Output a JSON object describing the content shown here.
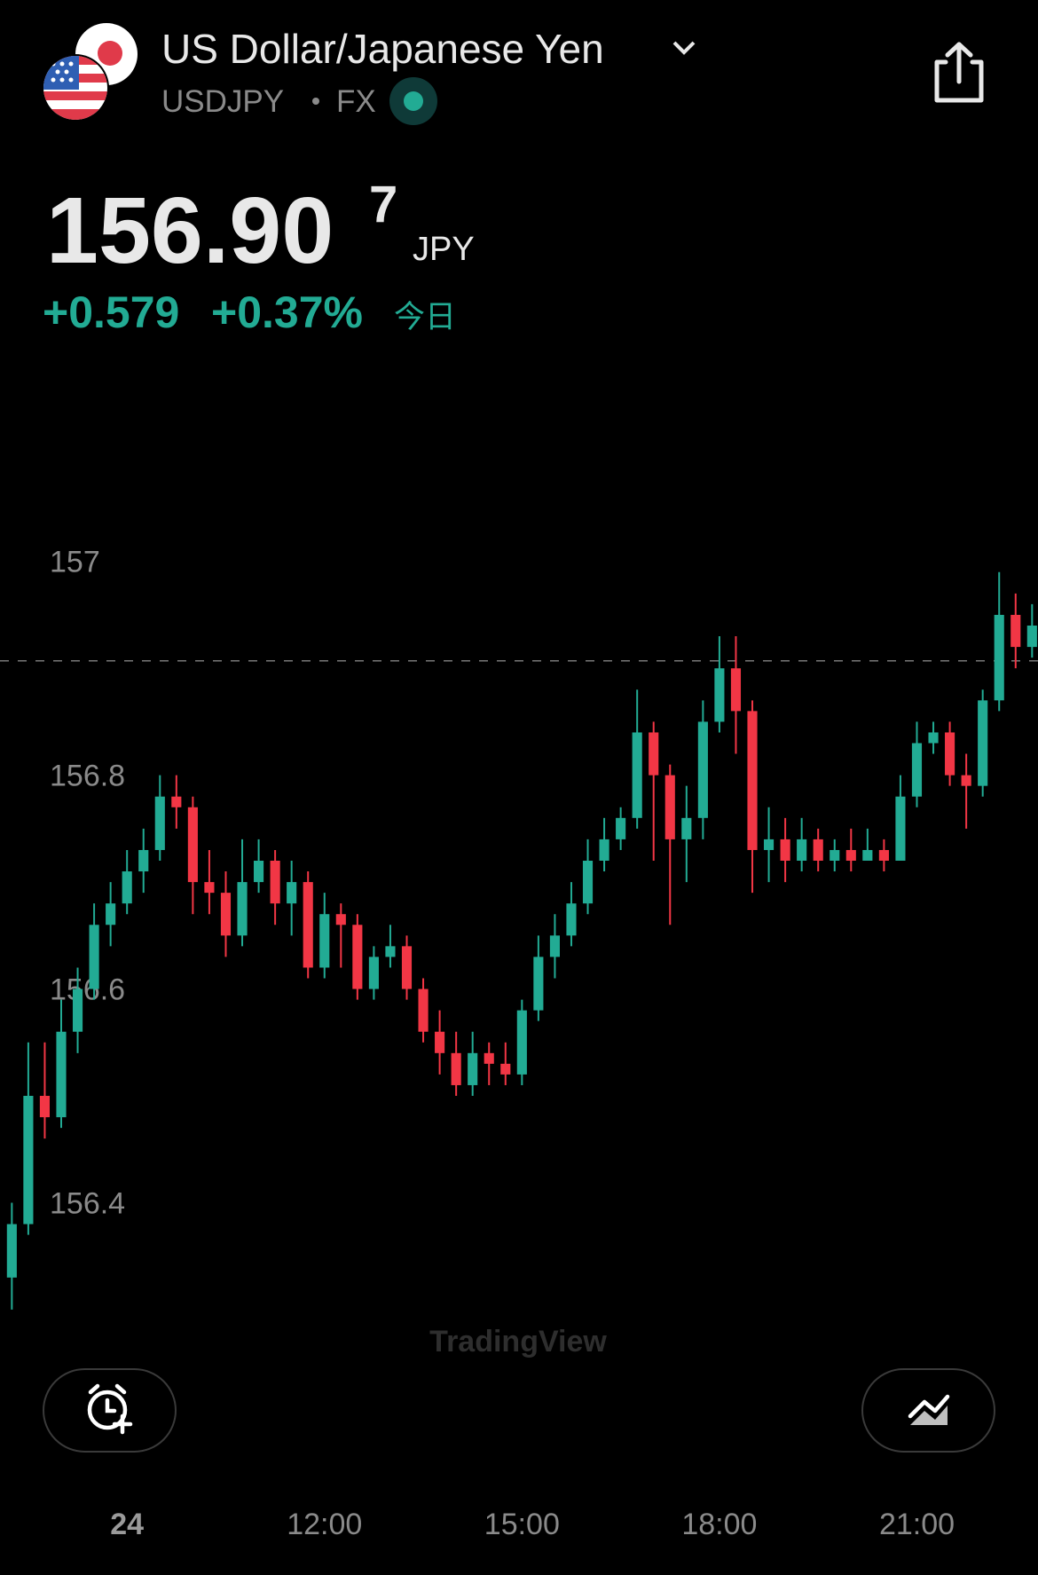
{
  "header": {
    "title": "US Dollar/Japanese Yen",
    "symbol": "USDJPY",
    "exchange": "FX",
    "price": "156.90",
    "price_last_digit": "7",
    "currency": "JPY",
    "change": "+0.579",
    "change_percent": "+0.37%",
    "period": "今日"
  },
  "watermark": "TradingView",
  "chart_data": {
    "type": "candlestick",
    "x": [
      7.25,
      7.5,
      7.75,
      8,
      8.25,
      8.5,
      8.75,
      9,
      9.25,
      9.5,
      9.75,
      10,
      10.25,
      10.5,
      10.75,
      11,
      11.25,
      11.5,
      11.75,
      12,
      12.25,
      12.5,
      12.75,
      13,
      13.25,
      13.5,
      13.75,
      14,
      14.25,
      14.5,
      14.75,
      15,
      15.25,
      15.5,
      15.75,
      16,
      16.25,
      16.5,
      16.75,
      17,
      17.25,
      17.5,
      17.75,
      18,
      18.25,
      18.5,
      18.75,
      19,
      19.25,
      19.5,
      19.75,
      20,
      20.25,
      20.5,
      20.75,
      21,
      21.25,
      21.5,
      21.75,
      22,
      22.25,
      22.5,
      22.75
    ],
    "open": [
      156.33,
      156.38,
      156.5,
      156.48,
      156.56,
      156.6,
      156.66,
      156.68,
      156.71,
      156.73,
      156.78,
      156.77,
      156.7,
      156.69,
      156.65,
      156.7,
      156.72,
      156.68,
      156.7,
      156.62,
      156.67,
      156.66,
      156.6,
      156.63,
      156.64,
      156.6,
      156.56,
      156.54,
      156.51,
      156.54,
      156.53,
      156.52,
      156.58,
      156.63,
      156.65,
      156.68,
      156.72,
      156.74,
      156.76,
      156.84,
      156.8,
      156.74,
      156.76,
      156.85,
      156.9,
      156.86,
      156.73,
      156.74,
      156.72,
      156.74,
      156.72,
      156.73,
      156.72,
      156.73,
      156.72,
      156.78,
      156.83,
      156.84,
      156.8,
      156.79,
      156.87,
      156.95,
      156.92
    ],
    "high": [
      156.4,
      156.55,
      156.55,
      156.59,
      156.62,
      156.68,
      156.7,
      156.73,
      156.75,
      156.8,
      156.8,
      156.78,
      156.73,
      156.71,
      156.74,
      156.74,
      156.73,
      156.72,
      156.71,
      156.69,
      156.68,
      156.67,
      156.64,
      156.66,
      156.65,
      156.61,
      156.58,
      156.56,
      156.56,
      156.55,
      156.55,
      156.59,
      156.65,
      156.67,
      156.7,
      156.74,
      156.76,
      156.77,
      156.88,
      156.85,
      156.81,
      156.79,
      156.87,
      156.93,
      156.93,
      156.87,
      156.77,
      156.76,
      156.76,
      156.75,
      156.74,
      156.75,
      156.75,
      156.74,
      156.8,
      156.85,
      156.85,
      156.85,
      156.82,
      156.88,
      156.99,
      156.97,
      156.96
    ],
    "low": [
      156.3,
      156.37,
      156.46,
      156.47,
      156.54,
      156.59,
      156.64,
      156.67,
      156.69,
      156.72,
      156.75,
      156.67,
      156.67,
      156.63,
      156.64,
      156.69,
      156.66,
      156.65,
      156.61,
      156.61,
      156.62,
      156.59,
      156.59,
      156.62,
      156.59,
      156.55,
      156.52,
      156.5,
      156.5,
      156.51,
      156.51,
      156.51,
      156.57,
      156.61,
      156.64,
      156.67,
      156.71,
      156.73,
      156.75,
      156.72,
      156.66,
      156.7,
      156.74,
      156.84,
      156.82,
      156.69,
      156.7,
      156.7,
      156.71,
      156.71,
      156.71,
      156.71,
      156.72,
      156.71,
      156.72,
      156.77,
      156.82,
      156.79,
      156.75,
      156.78,
      156.86,
      156.9,
      156.91
    ],
    "close": [
      156.38,
      156.5,
      156.48,
      156.56,
      156.6,
      156.66,
      156.68,
      156.71,
      156.73,
      156.78,
      156.77,
      156.7,
      156.69,
      156.65,
      156.7,
      156.72,
      156.68,
      156.7,
      156.62,
      156.67,
      156.66,
      156.6,
      156.63,
      156.64,
      156.6,
      156.56,
      156.54,
      156.51,
      156.54,
      156.53,
      156.52,
      156.58,
      156.63,
      156.65,
      156.68,
      156.72,
      156.74,
      156.76,
      156.84,
      156.8,
      156.74,
      156.76,
      156.85,
      156.9,
      156.86,
      156.73,
      156.74,
      156.72,
      156.74,
      156.72,
      156.73,
      156.72,
      156.73,
      156.72,
      156.78,
      156.83,
      156.84,
      156.8,
      156.79,
      156.87,
      156.95,
      156.92,
      156.94
    ],
    "up_color": "#22ab94",
    "down_color": "#f23645",
    "last_value": 156.907,
    "xlim": [
      7.07,
      22.84
    ],
    "ylim": [
      156.28,
      157.16
    ],
    "yticks": [
      156.4,
      156.6,
      156.8,
      157
    ],
    "xticks": [
      {
        "value": 9,
        "label": "24"
      },
      {
        "value": 12,
        "label": "12:00"
      },
      {
        "value": 15,
        "label": "15:00"
      },
      {
        "value": 18,
        "label": "18:00"
      },
      {
        "value": 21,
        "label": "21:00"
      }
    ],
    "grid": false
  }
}
